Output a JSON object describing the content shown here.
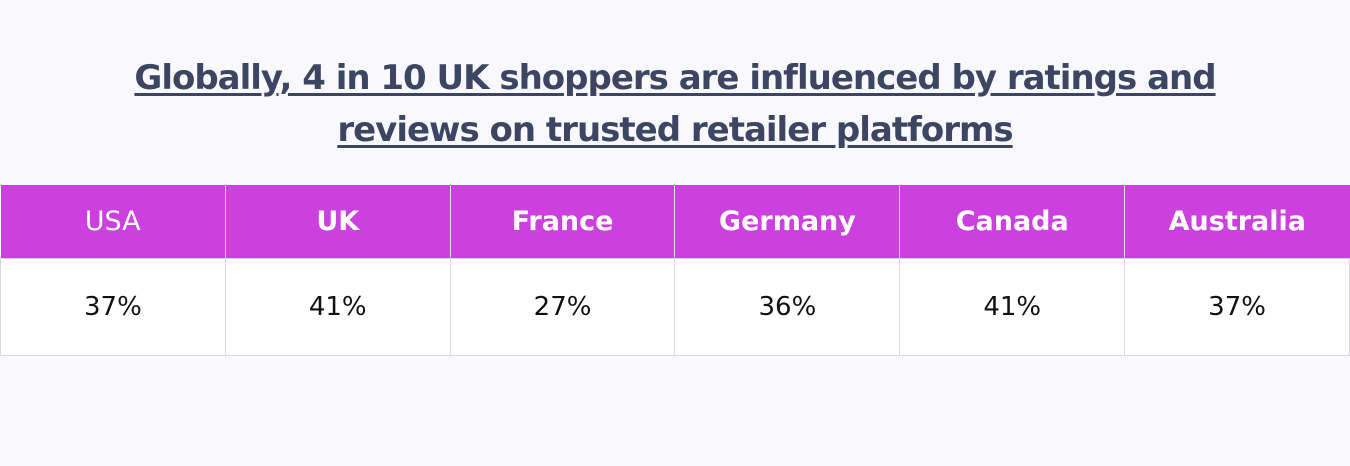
{
  "chart_data": {
    "type": "table",
    "title_line1": "Globally, 4 in 10 UK shoppers are influenced by ratings and",
    "title_line2": "reviews on trusted retailer platforms",
    "columns": [
      "USA",
      "UK",
      "France",
      "Germany",
      "Canada",
      "Australia"
    ],
    "values": [
      "37%",
      "41%",
      "27%",
      "36%",
      "41%",
      "37%"
    ],
    "header_color": "#cc40df",
    "title_color": "#3c4561"
  }
}
